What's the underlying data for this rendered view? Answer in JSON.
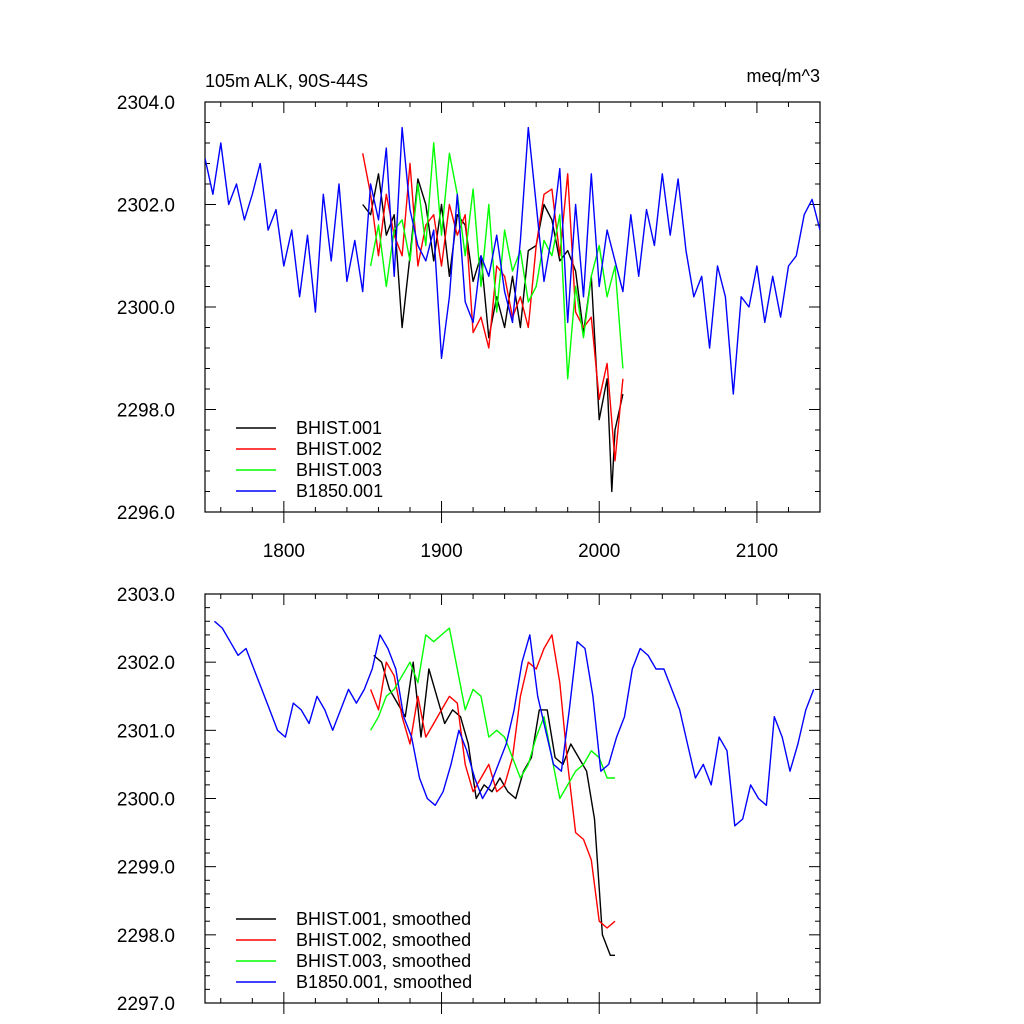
{
  "figure": {
    "title_left": "105m ALK, 90S-44S",
    "title_right": "meq/m^3"
  },
  "chart_data": [
    {
      "type": "line",
      "xlim": [
        1750,
        2140
      ],
      "ylim": [
        2296,
        2304
      ],
      "x_ticks": [
        1800,
        1900,
        2000,
        2100
      ],
      "x_tick_labels": [
        "1800",
        "1900",
        "2000",
        "2100"
      ],
      "y_ticks": [
        2296,
        2298,
        2300,
        2302,
        2304
      ],
      "y_tick_labels": [
        "2296.0",
        "2298.0",
        "2300.0",
        "2302.0",
        "2304.0"
      ],
      "grid": false,
      "legend_position": "bottom-left",
      "series": [
        {
          "name": "BHIST.001",
          "color": "#000000",
          "x": [
            1850,
            1855,
            1860,
            1865,
            1870,
            1875,
            1880,
            1885,
            1890,
            1895,
            1900,
            1905,
            1910,
            1915,
            1920,
            1925,
            1930,
            1935,
            1940,
            1945,
            1950,
            1955,
            1960,
            1965,
            1970,
            1975,
            1980,
            1985,
            1990,
            1995,
            2000,
            2005,
            2008,
            2010,
            2015
          ],
          "y": [
            2302.0,
            2301.8,
            2302.6,
            2301.4,
            2301.8,
            2299.6,
            2301.0,
            2302.5,
            2302.0,
            2300.9,
            2302.0,
            2300.6,
            2301.8,
            2301.6,
            2300.5,
            2301.0,
            2299.4,
            2300.2,
            2299.6,
            2300.6,
            2299.6,
            2301.1,
            2301.2,
            2302.0,
            2301.7,
            2300.9,
            2301.1,
            2300.7,
            2299.5,
            2300.6,
            2297.8,
            2298.6,
            2296.4,
            2297.6,
            2298.3
          ]
        },
        {
          "name": "BHIST.002",
          "color": "#ff0000",
          "x": [
            1850,
            1855,
            1860,
            1865,
            1870,
            1875,
            1880,
            1885,
            1890,
            1895,
            1900,
            1905,
            1910,
            1915,
            1920,
            1925,
            1930,
            1935,
            1940,
            1945,
            1950,
            1955,
            1960,
            1965,
            1970,
            1975,
            1980,
            1985,
            1990,
            1995,
            2000,
            2005,
            2010,
            2015
          ],
          "y": [
            2303.0,
            2302.2,
            2301.0,
            2302.2,
            2301.4,
            2301.0,
            2302.8,
            2300.8,
            2301.6,
            2301.8,
            2300.8,
            2302.0,
            2301.4,
            2301.8,
            2299.5,
            2299.8,
            2299.2,
            2300.8,
            2300.6,
            2299.8,
            2300.2,
            2299.6,
            2301.2,
            2302.2,
            2302.3,
            2301.0,
            2302.6,
            2299.9,
            2299.6,
            2299.8,
            2298.2,
            2298.9,
            2297.0,
            2298.6
          ]
        },
        {
          "name": "BHIST.003",
          "color": "#00ff00",
          "x": [
            1855,
            1860,
            1865,
            1870,
            1875,
            1880,
            1885,
            1890,
            1895,
            1900,
            1905,
            1910,
            1915,
            1920,
            1925,
            1930,
            1935,
            1940,
            1945,
            1950,
            1955,
            1960,
            1965,
            1970,
            1975,
            1980,
            1985,
            1990,
            1995,
            2000,
            2005,
            2010,
            2015
          ],
          "y": [
            2300.8,
            2301.6,
            2300.4,
            2301.5,
            2301.7,
            2300.9,
            2302.4,
            2301.2,
            2303.2,
            2301.4,
            2303.0,
            2302.2,
            2301.0,
            2302.3,
            2300.4,
            2302.0,
            2299.9,
            2301.5,
            2300.7,
            2301.1,
            2300.1,
            2300.4,
            2301.3,
            2301.0,
            2301.8,
            2298.6,
            2300.4,
            2299.4,
            2300.6,
            2301.2,
            2300.2,
            2300.8,
            2298.8
          ]
        },
        {
          "name": "B1850.001",
          "color": "#0000ff",
          "x": [
            1750,
            1755,
            1760,
            1765,
            1770,
            1775,
            1780,
            1785,
            1790,
            1795,
            1800,
            1805,
            1810,
            1815,
            1820,
            1825,
            1830,
            1835,
            1840,
            1845,
            1850,
            1855,
            1860,
            1865,
            1870,
            1875,
            1880,
            1885,
            1890,
            1895,
            1900,
            1905,
            1910,
            1915,
            1920,
            1925,
            1930,
            1935,
            1940,
            1945,
            1950,
            1955,
            1960,
            1965,
            1970,
            1975,
            1980,
            1985,
            1990,
            1995,
            2000,
            2005,
            2010,
            2015,
            2020,
            2025,
            2030,
            2035,
            2040,
            2045,
            2050,
            2055,
            2060,
            2065,
            2070,
            2075,
            2080,
            2085,
            2090,
            2095,
            2100,
            2105,
            2110,
            2115,
            2120,
            2125,
            2130,
            2135,
            2140
          ],
          "y": [
            2302.9,
            2302.2,
            2303.2,
            2302.0,
            2302.4,
            2301.7,
            2302.2,
            2302.8,
            2301.5,
            2301.9,
            2300.8,
            2301.5,
            2300.2,
            2301.4,
            2299.9,
            2302.2,
            2300.9,
            2302.4,
            2300.5,
            2301.3,
            2300.3,
            2302.4,
            2301.7,
            2303.1,
            2300.6,
            2303.5,
            2301.9,
            2301.2,
            2300.9,
            2301.5,
            2299.0,
            2300.2,
            2302.2,
            2300.1,
            2299.7,
            2301.0,
            2300.6,
            2301.4,
            2300.3,
            2299.7,
            2301.3,
            2303.5,
            2302.0,
            2300.5,
            2301.4,
            2302.7,
            2299.7,
            2302.0,
            2300.2,
            2302.6,
            2300.4,
            2301.5,
            2300.9,
            2300.3,
            2301.8,
            2300.6,
            2301.9,
            2301.2,
            2302.6,
            2301.4,
            2302.5,
            2301.1,
            2300.2,
            2300.6,
            2299.2,
            2300.8,
            2300.2,
            2298.3,
            2300.2,
            2300.0,
            2300.8,
            2299.7,
            2300.6,
            2299.8,
            2300.8,
            2301.0,
            2301.8,
            2302.1,
            2301.5
          ]
        }
      ]
    },
    {
      "type": "line",
      "xlim": [
        1750,
        2140
      ],
      "ylim": [
        2297,
        2303
      ],
      "x_ticks": [
        1800,
        1900,
        2000,
        2100
      ],
      "x_tick_labels": [],
      "y_ticks": [
        2297,
        2298,
        2299,
        2300,
        2301,
        2302,
        2303
      ],
      "y_tick_labels": [
        "2297.0",
        "2298.0",
        "2299.0",
        "2300.0",
        "2301.0",
        "2302.0",
        "2303.0"
      ],
      "grid": false,
      "legend_position": "bottom-left",
      "series": [
        {
          "name": "BHIST.001, smoothed",
          "color": "#000000",
          "x": [
            1857,
            1862,
            1867,
            1872,
            1877,
            1882,
            1887,
            1892,
            1897,
            1902,
            1907,
            1912,
            1917,
            1922,
            1927,
            1932,
            1937,
            1942,
            1947,
            1952,
            1957,
            1962,
            1967,
            1972,
            1977,
            1982,
            1987,
            1992,
            1997,
            2002,
            2007,
            2010
          ],
          "y": [
            2302.1,
            2302.0,
            2301.6,
            2301.4,
            2301.2,
            2302.0,
            2300.9,
            2301.9,
            2301.5,
            2301.1,
            2301.3,
            2301.2,
            2300.8,
            2300.0,
            2300.2,
            2300.1,
            2300.3,
            2300.1,
            2300.0,
            2300.4,
            2300.6,
            2301.3,
            2301.3,
            2300.6,
            2300.5,
            2300.8,
            2300.6,
            2300.4,
            2299.7,
            2298.0,
            2297.7,
            2297.7
          ]
        },
        {
          "name": "BHIST.002, smoothed",
          "color": "#ff0000",
          "x": [
            1855,
            1860,
            1865,
            1870,
            1875,
            1880,
            1885,
            1890,
            1895,
            1900,
            1905,
            1910,
            1915,
            1920,
            1925,
            1930,
            1935,
            1940,
            1945,
            1950,
            1955,
            1960,
            1965,
            1970,
            1975,
            1980,
            1985,
            1990,
            1995,
            2000,
            2005,
            2010
          ],
          "y": [
            2301.6,
            2301.3,
            2302.0,
            2301.8,
            2301.2,
            2300.8,
            2301.5,
            2300.9,
            2301.1,
            2301.3,
            2301.5,
            2301.4,
            2300.5,
            2300.1,
            2300.3,
            2300.5,
            2300.1,
            2300.2,
            2300.6,
            2301.5,
            2302.0,
            2301.9,
            2302.2,
            2302.4,
            2301.7,
            2300.5,
            2299.5,
            2299.4,
            2299.1,
            2298.2,
            2298.1,
            2298.2
          ]
        },
        {
          "name": "BHIST.003, smoothed",
          "color": "#00ff00",
          "x": [
            1855,
            1860,
            1865,
            1870,
            1875,
            1880,
            1885,
            1890,
            1895,
            1900,
            1905,
            1910,
            1915,
            1920,
            1925,
            1930,
            1935,
            1940,
            1945,
            1950,
            1955,
            1960,
            1965,
            1970,
            1975,
            1980,
            1985,
            1990,
            1995,
            2000,
            2005,
            2010
          ],
          "y": [
            2301.0,
            2301.2,
            2301.5,
            2301.6,
            2301.8,
            2302.0,
            2301.7,
            2302.4,
            2302.3,
            2302.4,
            2302.5,
            2301.9,
            2301.3,
            2301.6,
            2301.5,
            2300.9,
            2301.0,
            2300.9,
            2300.6,
            2300.3,
            2300.5,
            2300.9,
            2301.2,
            2300.6,
            2300.0,
            2300.2,
            2300.4,
            2300.5,
            2300.7,
            2300.6,
            2300.3,
            2300.3
          ]
        },
        {
          "name": "B1850.001, smoothed",
          "color": "#0000ff",
          "x": [
            1756,
            1761,
            1766,
            1771,
            1776,
            1781,
            1786,
            1791,
            1796,
            1801,
            1806,
            1811,
            1816,
            1821,
            1826,
            1831,
            1836,
            1841,
            1846,
            1851,
            1856,
            1861,
            1866,
            1871,
            1876,
            1881,
            1886,
            1891,
            1896,
            1901,
            1906,
            1911,
            1916,
            1921,
            1926,
            1931,
            1936,
            1941,
            1946,
            1951,
            1956,
            1961,
            1966,
            1971,
            1976,
            1981,
            1986,
            1991,
            1996,
            2001,
            2006,
            2011,
            2016,
            2021,
            2026,
            2031,
            2036,
            2041,
            2046,
            2051,
            2056,
            2061,
            2066,
            2071,
            2076,
            2081,
            2086,
            2091,
            2096,
            2101,
            2106,
            2111,
            2116,
            2121,
            2126,
            2131,
            2136
          ],
          "y": [
            2302.6,
            2302.5,
            2302.3,
            2302.1,
            2302.2,
            2301.9,
            2301.6,
            2301.3,
            2301.0,
            2300.9,
            2301.4,
            2301.3,
            2301.1,
            2301.5,
            2301.3,
            2301.0,
            2301.3,
            2301.6,
            2301.4,
            2301.6,
            2301.9,
            2302.4,
            2302.2,
            2301.9,
            2301.2,
            2300.9,
            2300.3,
            2300.0,
            2299.9,
            2300.1,
            2300.5,
            2301.0,
            2300.7,
            2300.3,
            2300.0,
            2300.2,
            2300.5,
            2300.8,
            2301.3,
            2302.0,
            2302.4,
            2301.5,
            2301.0,
            2300.5,
            2300.4,
            2301.3,
            2302.3,
            2302.2,
            2301.5,
            2300.4,
            2300.5,
            2300.9,
            2301.2,
            2301.9,
            2302.2,
            2302.1,
            2301.9,
            2301.9,
            2301.6,
            2301.3,
            2300.8,
            2300.3,
            2300.5,
            2300.2,
            2300.9,
            2300.7,
            2299.6,
            2299.7,
            2300.2,
            2300.0,
            2299.9,
            2301.2,
            2300.9,
            2300.4,
            2300.8,
            2301.3,
            2301.6
          ]
        }
      ]
    }
  ]
}
